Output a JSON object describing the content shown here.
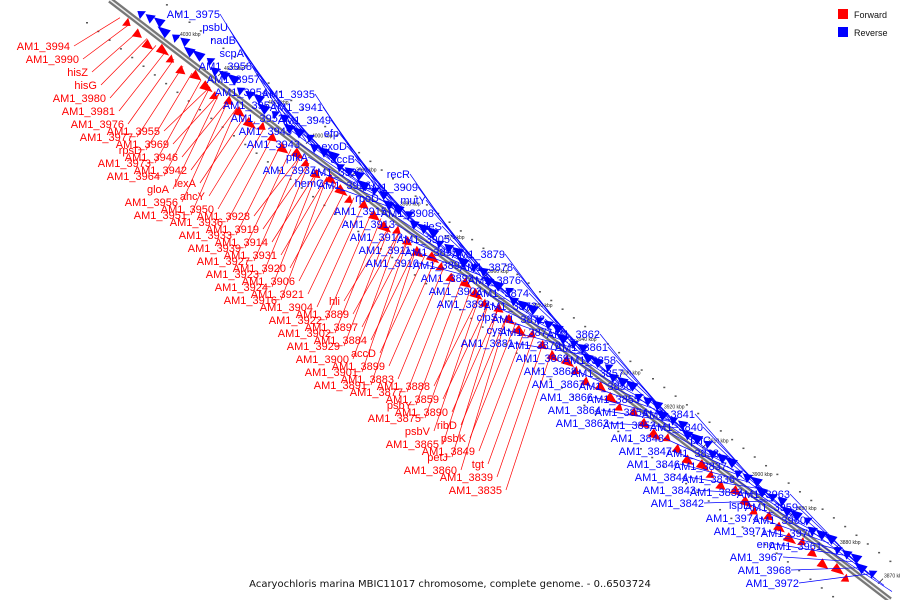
{
  "caption": "Acaryochloris marina MBIC11017 chromosome, complete genome. - 0..6503724",
  "legend": [
    {
      "label": "Forward",
      "color": "#ff0000"
    },
    {
      "label": "Reverse",
      "color": "#0000ff"
    }
  ],
  "scale_ticks": [
    "4030 kbp",
    "4020 kbp",
    "4010 kbp",
    "4000 kbp",
    "3990 kbp",
    "3980 kbp",
    "3970 kbp",
    "3960 kbp",
    "3950 kbp",
    "3940 kbp",
    "3930 kbp",
    "3920 kbp",
    "3910 kbp",
    "3900 kbp",
    "3890 kbp",
    "3880 kbp",
    "3870 kbp"
  ],
  "reverse_genes": [
    "AM1_3975",
    "psbU",
    "nadB",
    "scpA",
    "AM1_3958",
    "AM1_3957",
    "AM1_3954",
    "AM1_3953",
    "AM1_3952",
    "AM1_3945",
    "AM1_3943",
    "pfkA",
    "AM1_3937",
    "hemC",
    "AM1_3935",
    "AM1_3941",
    "AM1_3949",
    "efp",
    "exoD",
    "accB",
    "AM1_3930",
    "AM1_3926",
    "rpoD",
    "AM1_3915",
    "AM1_3913",
    "AM1_3912",
    "AM1_3911",
    "AM1_3910",
    "recR",
    "AM1_3909",
    "mutY",
    "AM1_3908",
    "ileS",
    "AM1_3905",
    "AM1_3895",
    "AM1_3894",
    "AM1_3893",
    "AM1_3903",
    "AM1_3892",
    "clpS",
    "cysI",
    "AM1_3881",
    "AM1_3879",
    "AM1_3878",
    "AM1_3876",
    "AM1_3874",
    "AM1_3873",
    "AM1_3872",
    "AM1_3871",
    "AM1_3870",
    "AM1_3869",
    "AM1_3868",
    "AM1_3867",
    "AM1_3866",
    "AM1_3864",
    "AM1_3863",
    "AM1_3862",
    "AM1_3861",
    "AM1_3858",
    "AM1_3857",
    "AM1_3856",
    "AM1_3855",
    "AM1_3854",
    "AM1_3852",
    "AM1_3848",
    "AM1_3847",
    "AM1_3846",
    "AM1_3844",
    "AM1_3843",
    "AM1_3842",
    "AM1_3841",
    "AM1_3840",
    "prfC",
    "AM1_3838",
    "AM1_3837",
    "AM1_3836",
    "AM1_3833",
    "ispD",
    "AM1_3974",
    "AM1_3971",
    "eno",
    "AM1_3967",
    "AM1_3968",
    "AM1_3972",
    "AM1_3963",
    "AM1_3959",
    "AM1_3960",
    "AM1_3970",
    "AM1_3961"
  ],
  "forward_genes": [
    "AM1_3994",
    "AM1_3990",
    "hisZ",
    "hisG",
    "AM1_3980",
    "AM1_3981",
    "AM1_3976",
    "AM1_3977",
    "rpsD",
    "AM1_3973",
    "AM1_3964",
    "gloA",
    "AM1_3956",
    "AM1_3951",
    "AM1_3955",
    "AM1_3969",
    "AM1_3946",
    "AM1_3942",
    "lexA",
    "ahcY",
    "AM1_3950",
    "AM1_3936",
    "AM1_3933",
    "AM1_3939",
    "AM1_3927",
    "AM1_3923",
    "AM1_3924",
    "AM1_3916",
    "AM1_3928",
    "AM1_3919",
    "AM1_3914",
    "AM1_3931",
    "AM1_3920",
    "AM1_3906",
    "AM1_3921",
    "AM1_3904",
    "AM1_3922",
    "AM1_3902",
    "AM1_3929",
    "AM1_3900",
    "AM1_3901",
    "AM1_3891",
    "hli",
    "AM1_3889",
    "AM1_3897",
    "AM1_3884",
    "accD",
    "AM1_3899",
    "AM1_3883",
    "AM1_3877",
    "psbY",
    "AM1_3875",
    "psbV",
    "AM1_3865",
    "petJ",
    "AM1_3860",
    "AM1_3888",
    "AM1_3859",
    "AM1_3890",
    "ribD",
    "psbK",
    "AM1_3849",
    "tgt",
    "AM1_3839",
    "AM1_3835"
  ]
}
